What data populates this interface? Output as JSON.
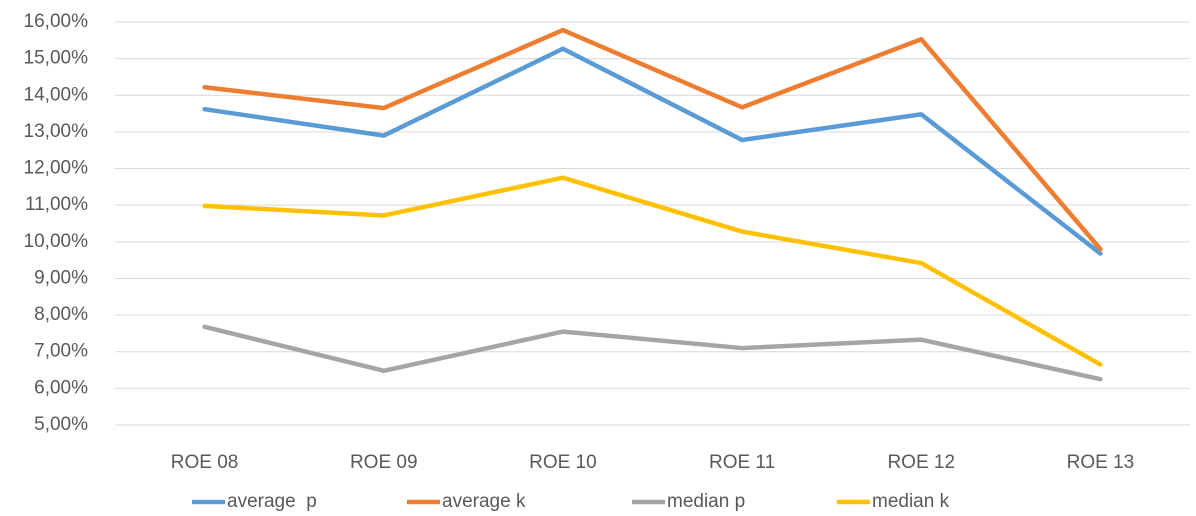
{
  "chart_data": {
    "type": "line",
    "categories": [
      "ROE 08",
      "ROE 09",
      "ROE 10",
      "ROE 11",
      "ROE 12",
      "ROE 13"
    ],
    "series": [
      {
        "name": "average  p",
        "color": "#5b9bd5",
        "values": [
          13.62,
          12.9,
          15.27,
          12.78,
          13.48,
          9.68
        ]
      },
      {
        "name": "average k",
        "color": "#ed7d31",
        "values": [
          14.22,
          13.65,
          15.78,
          13.67,
          15.53,
          9.8
        ]
      },
      {
        "name": "median p",
        "color": "#a5a5a5",
        "values": [
          7.68,
          6.48,
          7.55,
          7.1,
          7.33,
          6.25
        ]
      },
      {
        "name": "median k",
        "color": "#ffc000",
        "values": [
          10.98,
          10.72,
          11.75,
          10.28,
          9.42,
          6.65
        ]
      }
    ],
    "ylim": [
      5,
      16
    ],
    "yticks": [
      {
        "value": 5,
        "label": "5,00%"
      },
      {
        "value": 6,
        "label": "6,00%"
      },
      {
        "value": 7,
        "label": "7,00%"
      },
      {
        "value": 8,
        "label": "8,00%"
      },
      {
        "value": 9,
        "label": "9,00%"
      },
      {
        "value": 10,
        "label": "10,00%"
      },
      {
        "value": 11,
        "label": "11,00%"
      },
      {
        "value": 12,
        "label": "12,00%"
      },
      {
        "value": 13,
        "label": "13,00%"
      },
      {
        "value": 14,
        "label": "14,00%"
      },
      {
        "value": 15,
        "label": "15,00%"
      },
      {
        "value": 16,
        "label": "16,00%"
      }
    ],
    "grid": true,
    "legend": "bottom"
  }
}
